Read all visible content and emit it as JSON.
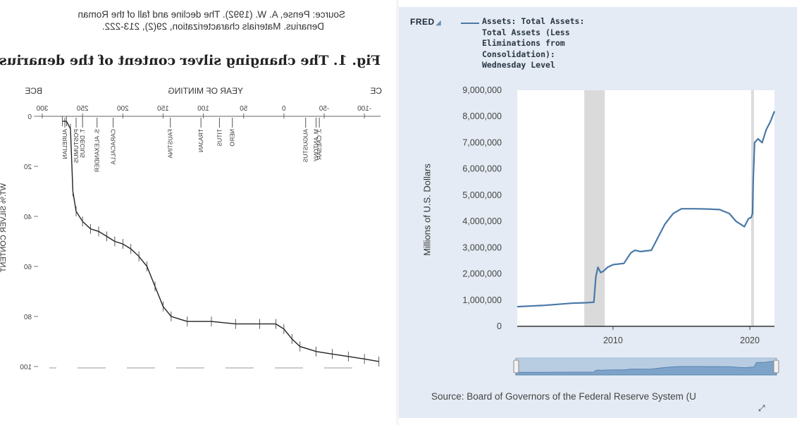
{
  "left_figure": {
    "source_line_1": "Source: Pense, A. W. (1992). The decline and fall of the Roman",
    "source_line_2": "Denarius. Materials characterization, 29(2), 213-222.",
    "fig_title": "Fig. 1. The changing silver content of the denarius.",
    "bce_label": "BCE",
    "ce_label": "CE",
    "top_axis_label": "YEAR OF MINTING",
    "ylabel": "WT.% SILVER CONTENT",
    "emperors": [
      "M. ANTONY",
      "J. CAESAR",
      "AUGUSTUS",
      "NERO",
      "TITUS",
      "TRAJAN",
      "FAUSTINA",
      "CARACALLA",
      "S. ALEXANDER",
      "T. DECIUS",
      "POSTUMUS",
      "AURELIAN"
    ]
  },
  "fred": {
    "logo": "FRED",
    "legend_lines": [
      "Assets: Total Assets:",
      "Total Assets (Less",
      "Eliminations from",
      "Consolidation):",
      "Wednesday Level"
    ],
    "ylabel": "Millions of U.S. Dollars",
    "source": "Source: Board of Governors of the Federal Reserve System (U",
    "fullscreen_icon": "expand-icon"
  },
  "chart_data": [
    {
      "type": "line",
      "title": "Fig. 1. The changing silver content of the denarius.",
      "xlabel": "YEAR OF MINTING",
      "ylabel": "WT.% SILVER CONTENT",
      "x_tick_labels": [
        "-100",
        "-50",
        "0",
        "50",
        "100",
        "150",
        "200",
        "250",
        "300"
      ],
      "y_tick_labels": [
        "0",
        "20",
        "40",
        "60",
        "80",
        "100"
      ],
      "xlim": [
        -120,
        300
      ],
      "ylim": [
        100,
        0
      ],
      "note": "Image is horizontally mirrored and the y axis runs from 0 at the top to 100 at the bottom.",
      "x": [
        -118,
        -100,
        -80,
        -60,
        -40,
        -20,
        -10,
        0,
        10,
        30,
        60,
        90,
        120,
        140,
        150,
        160,
        170,
        180,
        190,
        200,
        210,
        220,
        230,
        240,
        250,
        258,
        262,
        265,
        270,
        275
      ],
      "y": [
        98,
        97,
        96,
        95,
        94,
        92,
        89,
        85,
        83,
        83,
        83,
        82,
        82,
        80,
        76,
        68,
        60,
        56,
        53,
        51,
        50,
        48,
        46,
        45,
        42,
        38,
        30,
        5,
        2,
        2
      ]
    },
    {
      "type": "line",
      "title": "Assets: Total Assets: Total Assets (Less Eliminations from Consolidation): Wednesday Level",
      "ylabel": "Millions of U.S. Dollars",
      "x_tick_labels": [
        "2010",
        "2020"
      ],
      "y_tick_labels": [
        "0",
        "1,000,000",
        "2,000,000",
        "3,000,000",
        "4,000,000",
        "5,000,000",
        "6,000,000",
        "7,000,000",
        "8,000,000",
        "9,000,000"
      ],
      "xlim": [
        2003.0,
        2021.8
      ],
      "ylim": [
        0,
        9000000
      ],
      "recession_shading": [
        [
          2007.9,
          2009.4
        ],
        [
          2020.1,
          2020.3
        ]
      ],
      "x": [
        2003.0,
        2005.0,
        2007.0,
        2008.0,
        2008.6,
        2008.75,
        2008.9,
        2009.1,
        2009.3,
        2009.6,
        2010.0,
        2010.8,
        2011.3,
        2011.6,
        2012.0,
        2012.8,
        2013.3,
        2013.8,
        2014.4,
        2015.0,
        2016.0,
        2017.0,
        2017.8,
        2018.5,
        2019.0,
        2019.6,
        2019.9,
        2020.1,
        2020.2,
        2020.25,
        2020.35,
        2020.6,
        2020.9,
        2021.2,
        2021.5,
        2021.8
      ],
      "y": [
        750000,
        800000,
        880000,
        900000,
        920000,
        1900000,
        2250000,
        2050000,
        2100000,
        2250000,
        2350000,
        2400000,
        2800000,
        2900000,
        2850000,
        2900000,
        3400000,
        3900000,
        4300000,
        4480000,
        4480000,
        4470000,
        4450000,
        4300000,
        4000000,
        3800000,
        4100000,
        4150000,
        4300000,
        5600000,
        7000000,
        7150000,
        7000000,
        7500000,
        7800000,
        8200000
      ]
    }
  ]
}
